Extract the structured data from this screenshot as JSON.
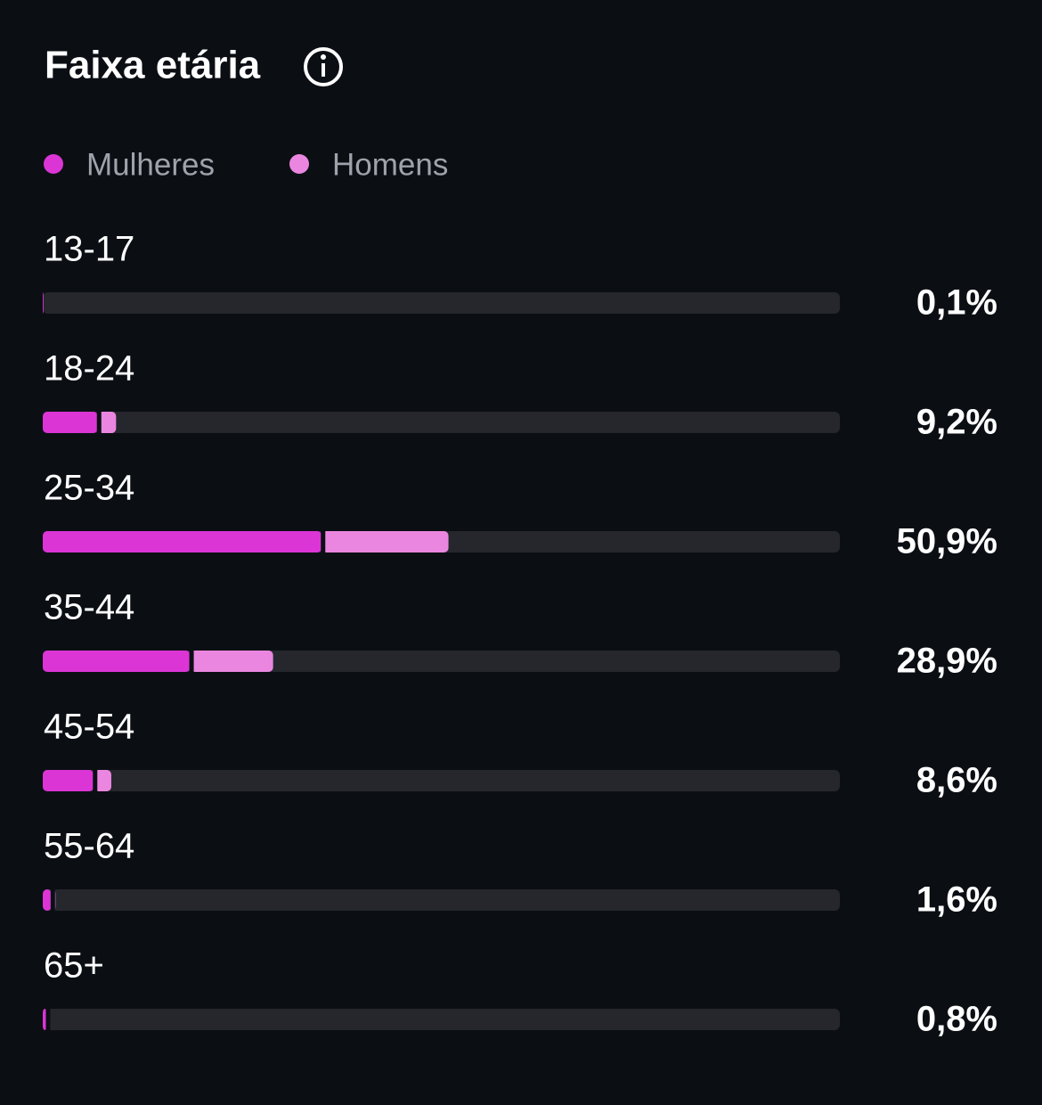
{
  "chart_data": {
    "type": "stacked-bar",
    "orientation": "horizontal",
    "title": "Faixa etária",
    "categories": [
      "13-17",
      "18-24",
      "25-34",
      "35-44",
      "45-54",
      "55-64",
      "65+"
    ],
    "series": [
      {
        "name": "Mulheres",
        "color": "#dc35d6",
        "values": [
          0.1,
          6.9,
          35.0,
          18.5,
          6.4,
          1.1,
          0.5
        ]
      },
      {
        "name": "Homens",
        "color": "#ea86e0",
        "values": [
          0,
          2.3,
          15.9,
          10.4,
          2.2,
          0.5,
          0.3
        ]
      }
    ],
    "totals": [
      0.1,
      9.2,
      50.9,
      28.9,
      8.6,
      1.6,
      0.8
    ],
    "total_labels": [
      "0,1%",
      "9,2%",
      "50,9%",
      "28,9%",
      "8,6%",
      "1,6%",
      "0,8%"
    ],
    "xlim": [
      0,
      100
    ]
  }
}
